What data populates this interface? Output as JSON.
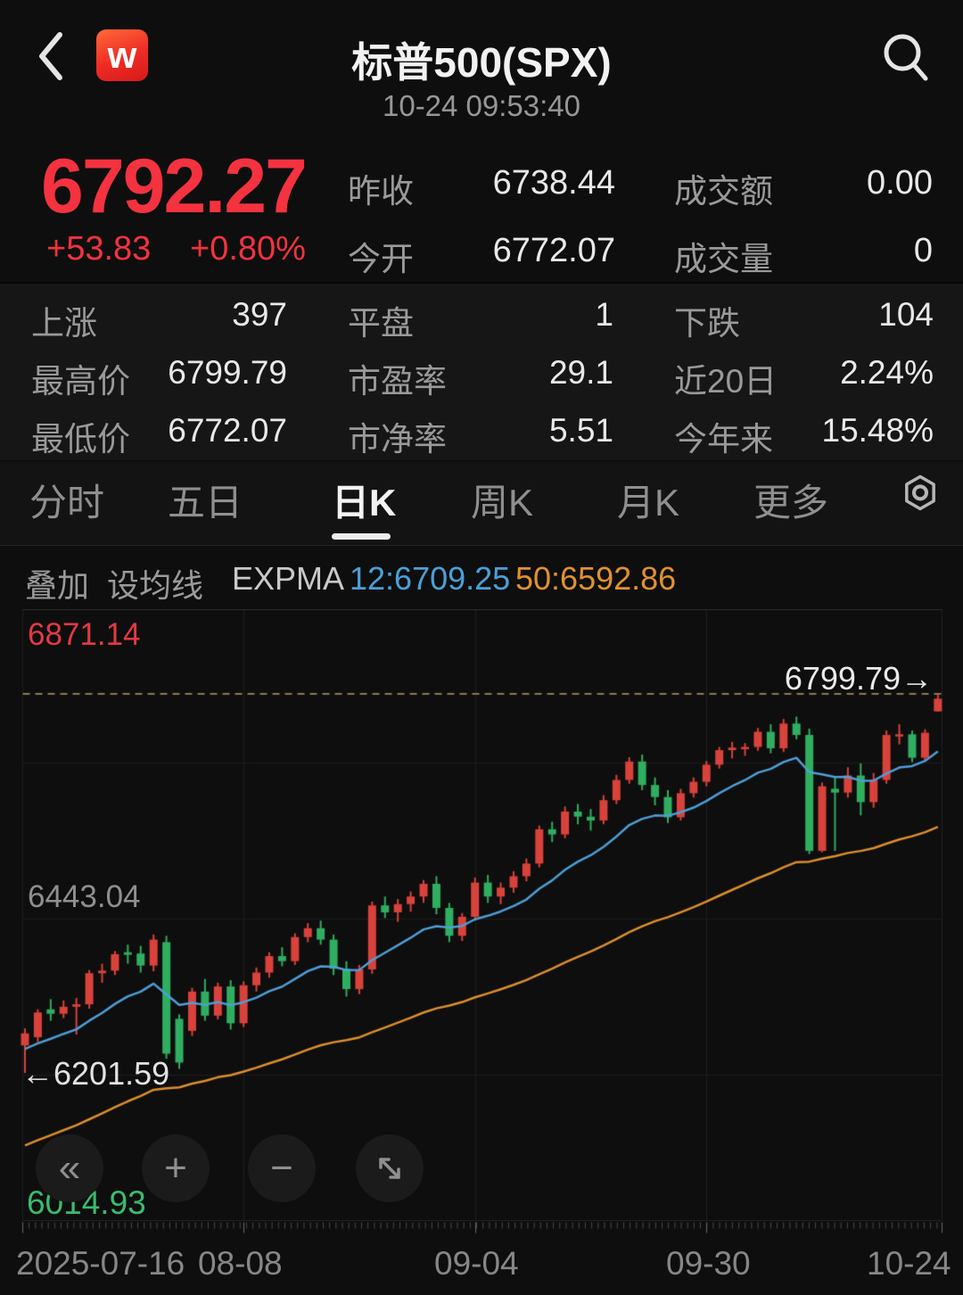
{
  "header": {
    "logo_text": "w",
    "title": "标普500(SPX)",
    "timestamp": "10-24 09:53:40"
  },
  "quote": {
    "last": "6792.27",
    "change": "+53.83",
    "change_pct": "+0.80%",
    "fields": [
      {
        "label": "昨收",
        "value": "6738.44"
      },
      {
        "label": "成交额",
        "value": "0.00"
      },
      {
        "label": "今开",
        "value": "6772.07"
      },
      {
        "label": "成交量",
        "value": "0"
      }
    ]
  },
  "stats": {
    "rows": [
      {
        "cells": [
          {
            "label": "上涨",
            "value": "397"
          },
          {
            "label": "平盘",
            "value": "1"
          },
          {
            "label": "下跌",
            "value": "104"
          }
        ]
      },
      {
        "cells": [
          {
            "label": "最高价",
            "value": "6799.79"
          },
          {
            "label": "市盈率",
            "value": "29.1"
          },
          {
            "label": "近20日",
            "value": "2.24%"
          }
        ]
      },
      {
        "cells": [
          {
            "label": "最低价",
            "value": "6772.07"
          },
          {
            "label": "市净率",
            "value": "5.51"
          },
          {
            "label": "今年来",
            "value": "15.48%"
          }
        ]
      }
    ]
  },
  "tabs": {
    "items": [
      "分时",
      "五日",
      "日K",
      "周K",
      "月K",
      "更多"
    ],
    "active": "日K"
  },
  "toolbar": {
    "overlay": "叠加",
    "set_ma": "设均线",
    "indicator": "EXPMA",
    "ema12": "12:6709.25",
    "ema50": "50:6592.86",
    "ema12_color": "#4aa0d9",
    "ema50_color": "#e0922f"
  },
  "controls": {
    "rewind": "«",
    "zoom_in": "+",
    "zoom_out": "−"
  },
  "chart_data": {
    "type": "candlestick",
    "title": "标普500(SPX) 日K",
    "grid": true,
    "up_color": "#d9423b",
    "down_color": "#2fae60",
    "dashed_line_color": "#8d7b4f",
    "ylim": [
      6014.93,
      6871.14
    ],
    "x_labels": [
      "2025-07-16",
      "08-08",
      "09-04",
      "09-30",
      "10-24"
    ],
    "x_gridline_indices": [
      17,
      35,
      53
    ],
    "y_axis_labels": [
      {
        "text": "6871.14",
        "color": "#e23a42"
      },
      {
        "text": "6443.04",
        "color": "#8f8f8f"
      },
      {
        "text": "6201.59",
        "arrow": "←",
        "color": "#e2e2e2"
      },
      {
        "text": "6014.93",
        "color": "#3abb6e"
      }
    ],
    "max_marker": {
      "text": "6799.79",
      "arrow": "→",
      "value": 6799.79
    },
    "overlays": [
      {
        "name": "EXPMA12",
        "period": 12,
        "seed": 6235,
        "color": "#4f9fd8",
        "last_value": 6709.25
      },
      {
        "name": "EXPMA50",
        "period": 50,
        "seed": 6080,
        "color": "#dd8f2e",
        "last_value": 6592.86
      }
    ],
    "candles": [
      [
        6245,
        6272,
        6201.59,
        6264
      ],
      [
        6258,
        6302,
        6250,
        6297
      ],
      [
        6302,
        6318,
        6284,
        6295
      ],
      [
        6295,
        6316,
        6288,
        6306
      ],
      [
        6306,
        6320,
        6262,
        6310
      ],
      [
        6310,
        6364,
        6303,
        6359
      ],
      [
        6359,
        6374,
        6344,
        6363
      ],
      [
        6363,
        6394,
        6356,
        6389
      ],
      [
        6392,
        6404,
        6374,
        6388
      ],
      [
        6390,
        6402,
        6360,
        6371
      ],
      [
        6371,
        6420,
        6362,
        6412
      ],
      [
        6408,
        6418,
        6224,
        6232
      ],
      [
        6287,
        6294,
        6208,
        6218
      ],
      [
        6268,
        6336,
        6260,
        6330
      ],
      [
        6330,
        6350,
        6284,
        6292
      ],
      [
        6292,
        6344,
        6286,
        6338
      ],
      [
        6338,
        6348,
        6270,
        6280
      ],
      [
        6280,
        6346,
        6274,
        6340
      ],
      [
        6340,
        6368,
        6330,
        6360
      ],
      [
        6360,
        6392,
        6352,
        6386
      ],
      [
        6386,
        6400,
        6370,
        6378
      ],
      [
        6378,
        6422,
        6372,
        6416
      ],
      [
        6416,
        6438,
        6408,
        6430
      ],
      [
        6430,
        6442,
        6404,
        6412
      ],
      [
        6412,
        6420,
        6356,
        6366
      ],
      [
        6366,
        6378,
        6322,
        6334
      ],
      [
        6334,
        6372,
        6326,
        6365
      ],
      [
        6365,
        6472,
        6358,
        6466
      ],
      [
        6466,
        6480,
        6446,
        6455
      ],
      [
        6455,
        6476,
        6440,
        6468
      ],
      [
        6468,
        6488,
        6456,
        6480
      ],
      [
        6480,
        6506,
        6470,
        6500
      ],
      [
        6500,
        6512,
        6452,
        6462
      ],
      [
        6462,
        6470,
        6408,
        6418
      ],
      [
        6418,
        6454,
        6410,
        6448
      ],
      [
        6448,
        6510,
        6442,
        6502
      ],
      [
        6502,
        6514,
        6470,
        6480
      ],
      [
        6480,
        6502,
        6468,
        6494
      ],
      [
        6494,
        6520,
        6486,
        6512
      ],
      [
        6512,
        6540,
        6504,
        6532
      ],
      [
        6532,
        6592,
        6526,
        6586
      ],
      [
        6586,
        6598,
        6566,
        6578
      ],
      [
        6578,
        6622,
        6572,
        6614
      ],
      [
        6614,
        6626,
        6594,
        6606
      ],
      [
        6606,
        6618,
        6584,
        6600
      ],
      [
        6600,
        6640,
        6594,
        6632
      ],
      [
        6632,
        6672,
        6626,
        6664
      ],
      [
        6664,
        6700,
        6658,
        6693
      ],
      [
        6693,
        6704,
        6648,
        6656
      ],
      [
        6656,
        6668,
        6624,
        6637
      ],
      [
        6637,
        6648,
        6596,
        6605
      ],
      [
        6605,
        6650,
        6600,
        6643
      ],
      [
        6643,
        6668,
        6636,
        6661
      ],
      [
        6661,
        6694,
        6654,
        6688
      ],
      [
        6688,
        6716,
        6682,
        6711
      ],
      [
        6711,
        6724,
        6698,
        6715
      ],
      [
        6715,
        6722,
        6702,
        6716
      ],
      [
        6716,
        6746,
        6710,
        6740
      ],
      [
        6740,
        6752,
        6706,
        6714
      ],
      [
        6714,
        6760,
        6708,
        6753
      ],
      [
        6753,
        6764,
        6728,
        6735
      ],
      [
        6735,
        6745,
        6547,
        6552
      ],
      [
        6552,
        6660,
        6550,
        6654
      ],
      [
        6650,
        6670,
        6552,
        6644
      ],
      [
        6644,
        6684,
        6636,
        6671
      ],
      [
        6671,
        6690,
        6608,
        6629
      ],
      [
        6629,
        6675,
        6620,
        6664
      ],
      [
        6664,
        6742,
        6658,
        6735
      ],
      [
        6735,
        6752,
        6720,
        6736
      ],
      [
        6736,
        6742,
        6692,
        6699
      ],
      [
        6699,
        6744,
        6694,
        6738.44
      ],
      [
        6772.07,
        6799.79,
        6772.07,
        6792.27
      ]
    ]
  }
}
